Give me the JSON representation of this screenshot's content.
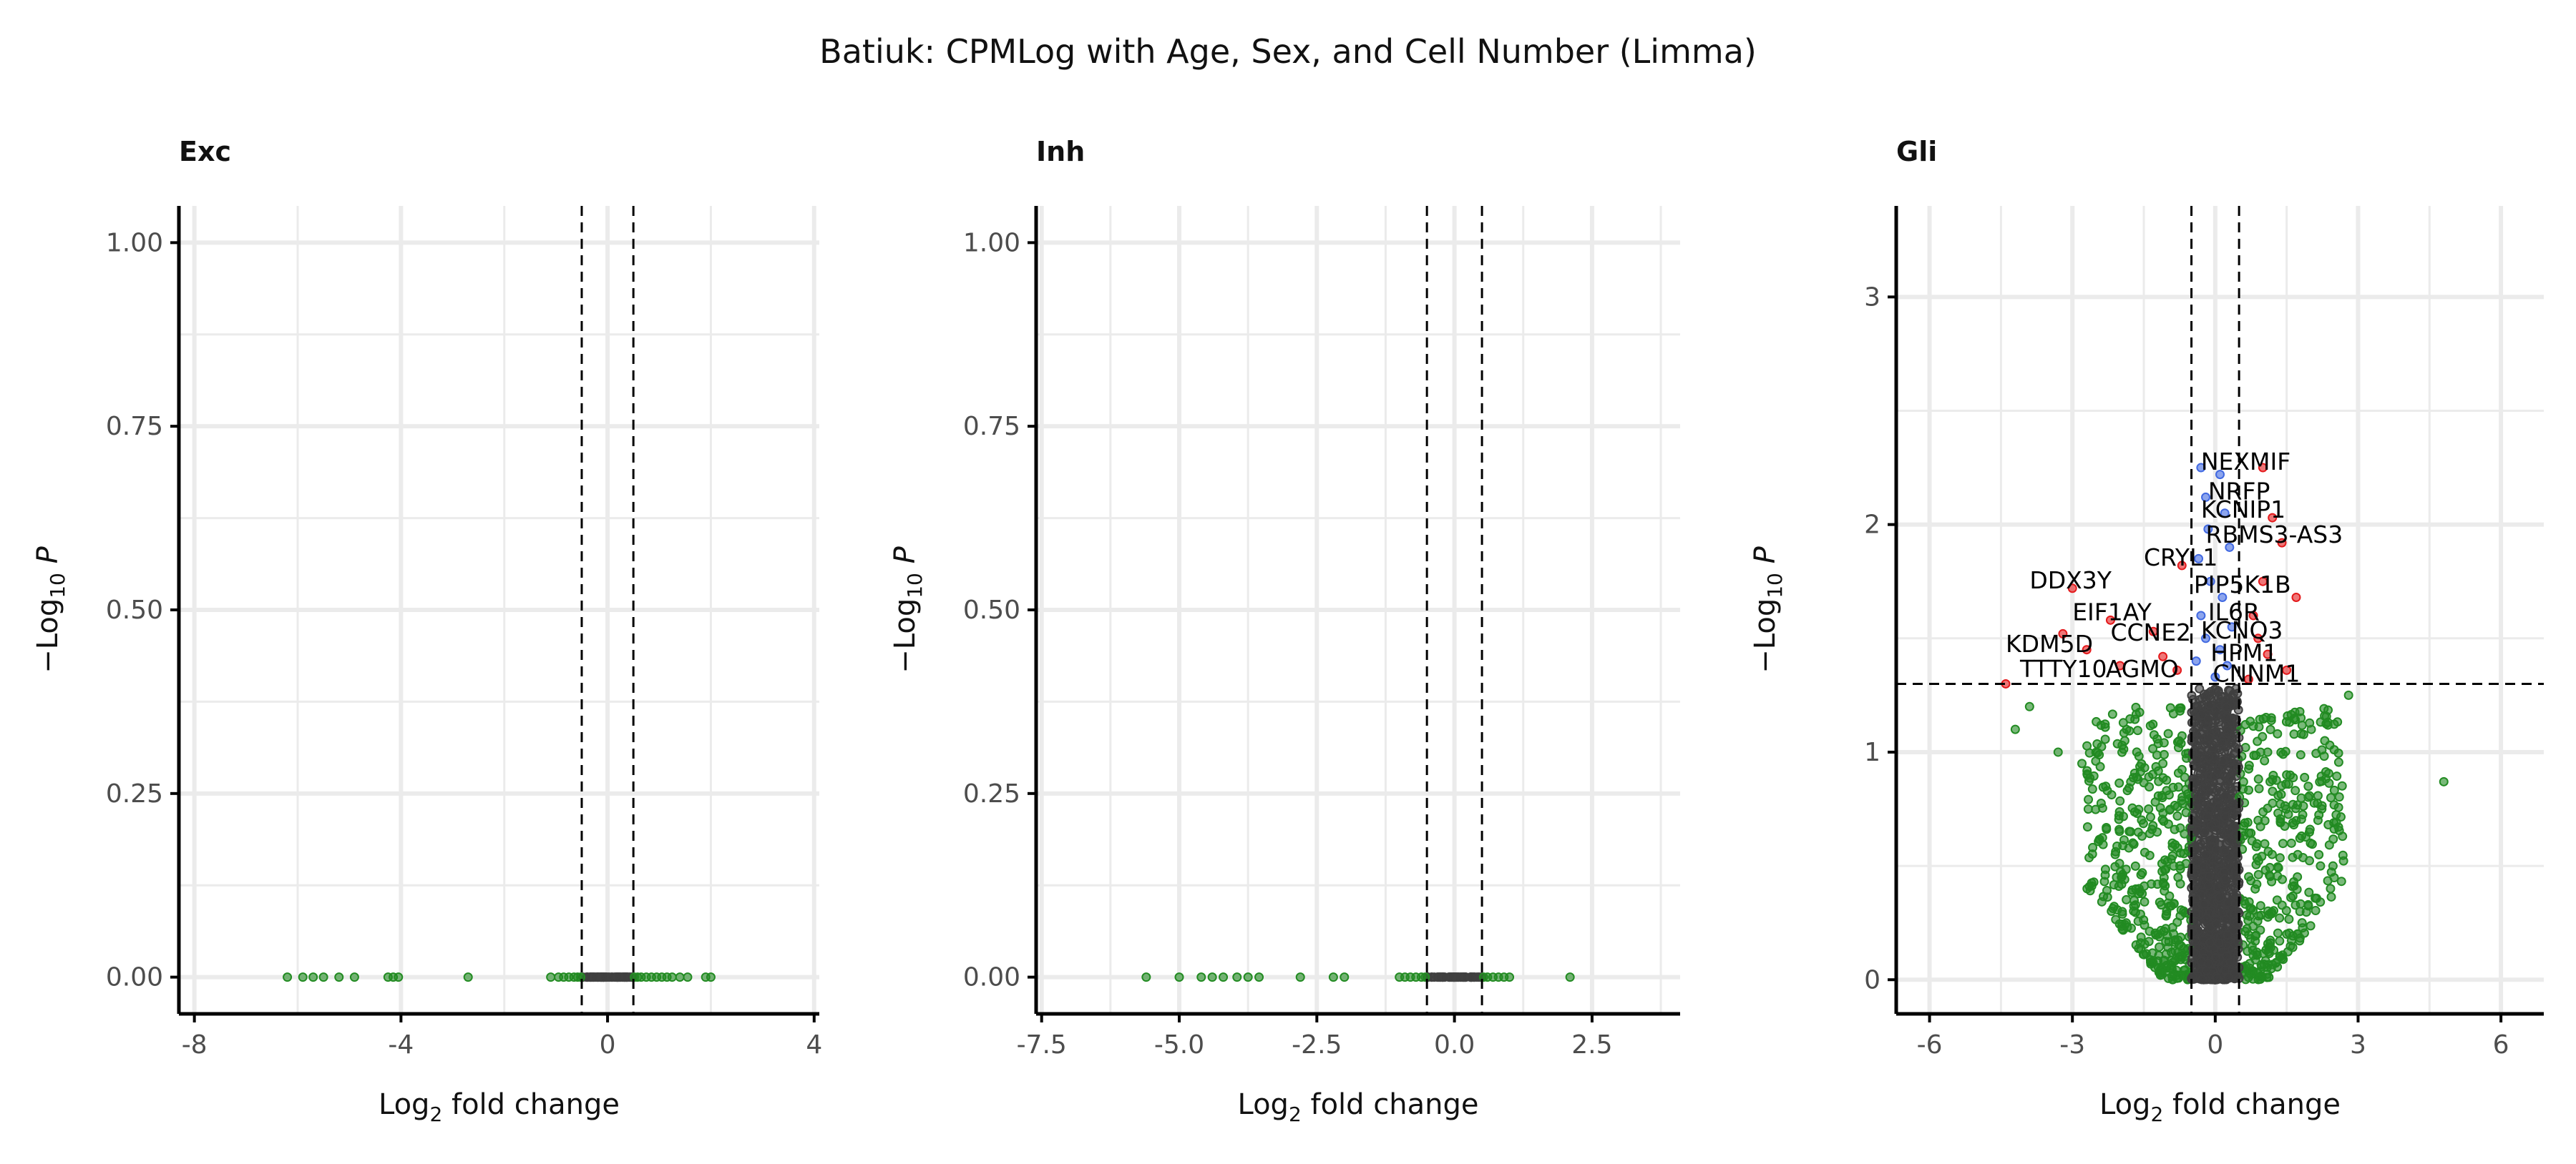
{
  "title": "Batiuk: CPMLog with Age, Sex, and Cell Number (Limma)",
  "colors": {
    "ns": "#404040",
    "log2fc_only": "#228B22",
    "p_only": "#4169E1",
    "p_and_log2fc": "#E41A1C"
  },
  "chart_data": [
    {
      "type": "scatter",
      "title": "Exc",
      "xlabel": "Log2 fold change",
      "ylabel": "-Log10 P",
      "xlim": [
        -8.3,
        4.1
      ],
      "ylim": [
        -0.05,
        1.05
      ],
      "xticks": [
        -8,
        -4,
        0,
        4
      ],
      "xtick_labels": [
        "-8",
        "-4",
        "0",
        "4"
      ],
      "yticks": [
        0,
        0.25,
        0.5,
        0.75,
        1.0
      ],
      "ytick_labels": [
        "0.00",
        "0.25",
        "0.50",
        "0.75",
        "1.00"
      ],
      "fc_cutoff": 0.5,
      "p_cutoff": null,
      "points_log2fc_only": [
        [
          -6.2,
          0
        ],
        [
          -5.9,
          0
        ],
        [
          -5.7,
          0
        ],
        [
          -5.5,
          0
        ],
        [
          -5.2,
          0
        ],
        [
          -4.9,
          0
        ],
        [
          -4.25,
          0
        ],
        [
          -4.15,
          0
        ],
        [
          -4.05,
          0
        ],
        [
          -2.7,
          0
        ],
        [
          -1.1,
          0
        ],
        [
          -0.95,
          0
        ],
        [
          -0.85,
          0
        ],
        [
          -0.75,
          0
        ],
        [
          -0.65,
          0
        ],
        [
          -0.58,
          0
        ],
        [
          -0.52,
          0
        ],
        [
          0.52,
          0
        ],
        [
          0.58,
          0
        ],
        [
          0.65,
          0
        ],
        [
          0.75,
          0
        ],
        [
          0.85,
          0
        ],
        [
          0.95,
          0
        ],
        [
          1.05,
          0
        ],
        [
          1.15,
          0
        ],
        [
          1.25,
          0
        ],
        [
          1.4,
          0
        ],
        [
          1.55,
          0
        ],
        [
          1.9,
          0
        ],
        [
          2.0,
          0
        ]
      ],
      "ns_range": [
        -0.5,
        0.5
      ]
    },
    {
      "type": "scatter",
      "title": "Inh",
      "xlabel": "Log2 fold change",
      "ylabel": "-Log10 P",
      "xlim": [
        -7.6,
        4.1
      ],
      "ylim": [
        -0.05,
        1.05
      ],
      "xticks": [
        -7.5,
        -5.0,
        -2.5,
        0,
        2.5
      ],
      "xtick_labels": [
        "-7.5",
        "-5.0",
        "-2.5",
        "0.0",
        "2.5"
      ],
      "yticks": [
        0,
        0.25,
        0.5,
        0.75,
        1.0
      ],
      "ytick_labels": [
        "0.00",
        "0.25",
        "0.50",
        "0.75",
        "1.00"
      ],
      "fc_cutoff": 0.5,
      "p_cutoff": null,
      "points_log2fc_only": [
        [
          -5.6,
          0
        ],
        [
          -5.0,
          0
        ],
        [
          -4.6,
          0
        ],
        [
          -4.4,
          0
        ],
        [
          -4.2,
          0
        ],
        [
          -3.95,
          0
        ],
        [
          -3.75,
          0
        ],
        [
          -3.55,
          0
        ],
        [
          -2.8,
          0
        ],
        [
          -2.2,
          0
        ],
        [
          -2.0,
          0
        ],
        [
          -1.0,
          0
        ],
        [
          -0.9,
          0
        ],
        [
          -0.8,
          0
        ],
        [
          -0.7,
          0
        ],
        [
          -0.6,
          0
        ],
        [
          -0.53,
          0
        ],
        [
          0.53,
          0
        ],
        [
          0.6,
          0
        ],
        [
          0.7,
          0
        ],
        [
          0.8,
          0
        ],
        [
          0.9,
          0
        ],
        [
          1.0,
          0
        ],
        [
          2.1,
          0
        ]
      ],
      "ns_range": [
        -0.5,
        0.5
      ]
    },
    {
      "type": "scatter",
      "title": "Gli",
      "xlabel": "Log2 fold change",
      "ylabel": "-Log10 P",
      "xlim": [
        -6.7,
        6.9
      ],
      "ylim": [
        -0.15,
        3.4
      ],
      "xticks": [
        -6,
        -3,
        0,
        3,
        6
      ],
      "xtick_labels": [
        "-6",
        "-3",
        "0",
        "3",
        "6"
      ],
      "yticks": [
        0,
        1,
        2,
        3
      ],
      "ytick_labels": [
        "0",
        "1",
        "2",
        "3"
      ],
      "fc_cutoff": 0.5,
      "p_cutoff": 1.3,
      "points_log2fc_only": [
        [
          -4.2,
          1.1
        ],
        [
          -3.9,
          1.2
        ],
        [
          -3.3,
          1.0
        ],
        [
          -2.8,
          0.95
        ],
        [
          -2.3,
          0.85
        ],
        [
          -2.1,
          0.55
        ],
        [
          -1.9,
          1.05
        ],
        [
          -1.6,
          0.4
        ],
        [
          -1.4,
          0.75
        ],
        [
          -1.2,
          0.2
        ],
        [
          -1.1,
          0.95
        ],
        [
          -0.9,
          0.6
        ],
        [
          0.9,
          0.7
        ],
        [
          1.1,
          1.0
        ],
        [
          1.3,
          0.35
        ],
        [
          1.5,
          0.9
        ],
        [
          1.8,
          1.15
        ],
        [
          2.0,
          0.6
        ],
        [
          2.3,
          1.05
        ],
        [
          2.8,
          1.25
        ],
        [
          4.8,
          0.87
        ]
      ],
      "points_p_only": [
        [
          -0.3,
          2.25
        ],
        [
          -0.2,
          2.12
        ],
        [
          0.1,
          2.22
        ],
        [
          -0.15,
          1.98
        ],
        [
          0.2,
          2.05
        ],
        [
          -0.35,
          1.85
        ],
        [
          0.3,
          1.9
        ],
        [
          -0.1,
          1.75
        ],
        [
          0.15,
          1.68
        ],
        [
          -0.3,
          1.6
        ],
        [
          0.35,
          1.55
        ],
        [
          -0.2,
          1.5
        ],
        [
          0.1,
          1.45
        ],
        [
          -0.4,
          1.4
        ],
        [
          0.25,
          1.38
        ],
        [
          0.0,
          1.33
        ]
      ],
      "points_p_and_log2fc": [
        [
          -4.4,
          1.3
        ],
        [
          -3.0,
          1.72
        ],
        [
          -3.2,
          1.52
        ],
        [
          -2.7,
          1.45
        ],
        [
          -2.2,
          1.58
        ],
        [
          -2.0,
          1.38
        ],
        [
          -1.3,
          1.53
        ],
        [
          -1.1,
          1.42
        ],
        [
          -0.8,
          1.36
        ],
        [
          -0.7,
          1.82
        ],
        [
          1.0,
          2.25
        ],
        [
          1.2,
          2.03
        ],
        [
          1.4,
          1.92
        ],
        [
          1.0,
          1.75
        ],
        [
          1.7,
          1.68
        ],
        [
          0.8,
          1.6
        ],
        [
          0.9,
          1.5
        ],
        [
          1.1,
          1.43
        ],
        [
          1.5,
          1.36
        ],
        [
          0.7,
          1.32
        ]
      ],
      "labels": [
        {
          "text": "NEXMIF",
          "x": -0.3,
          "y": 2.24
        },
        {
          "text": "NRFP",
          "x": -0.15,
          "y": 2.11
        },
        {
          "text": "KCNIP1",
          "x": -0.3,
          "y": 2.03
        },
        {
          "text": "RBMS3-AS3",
          "x": -0.2,
          "y": 1.92
        },
        {
          "text": "CRYL1",
          "x": -1.5,
          "y": 1.82
        },
        {
          "text": "DDX3Y",
          "x": -3.9,
          "y": 1.72
        },
        {
          "text": "PIP5K1B",
          "x": -0.45,
          "y": 1.7
        },
        {
          "text": "EIF1AY",
          "x": -3.0,
          "y": 1.58
        },
        {
          "text": "IL6R",
          "x": -0.15,
          "y": 1.58
        },
        {
          "text": "CCNE2",
          "x": -2.2,
          "y": 1.49
        },
        {
          "text": "KCNQ3",
          "x": -0.3,
          "y": 1.5
        },
        {
          "text": "KDM5D",
          "x": -4.4,
          "y": 1.44
        },
        {
          "text": "HPM1",
          "x": -0.1,
          "y": 1.4
        },
        {
          "text": "TTTY10",
          "x": -4.1,
          "y": 1.33
        },
        {
          "text": "AGMO",
          "x": -2.3,
          "y": 1.33
        },
        {
          "text": "CNNM1",
          "x": -0.05,
          "y": 1.31
        }
      ],
      "ns_range": [
        -0.5,
        0.5
      ],
      "ns_ymax": 1.28
    }
  ]
}
